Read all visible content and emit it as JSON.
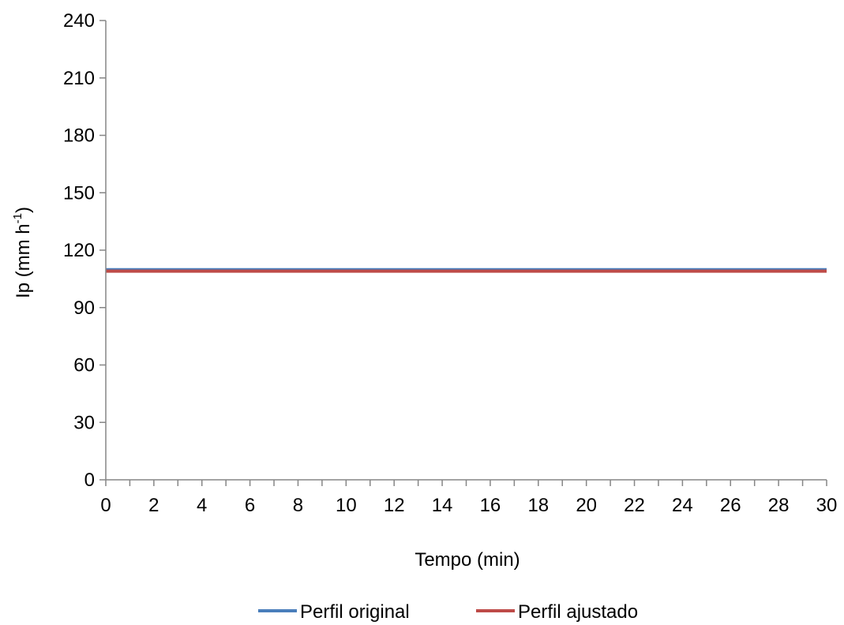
{
  "chart_data": {
    "type": "line",
    "title": "",
    "xlabel": "Tempo (min)",
    "ylabel_main": "Ip (mm h",
    "ylabel_sup": "-1",
    "ylabel_close": ")",
    "xlim": [
      0,
      30
    ],
    "ylim": [
      0,
      240
    ],
    "x_ticks": [
      0,
      2,
      4,
      6,
      8,
      10,
      12,
      14,
      16,
      18,
      20,
      22,
      24,
      26,
      28,
      30
    ],
    "y_ticks": [
      0,
      30,
      60,
      90,
      120,
      150,
      180,
      210,
      240
    ],
    "grid": false,
    "legend_position": "bottom",
    "series": [
      {
        "name": "Perfil original",
        "color": "#4a7ebb",
        "x": [
          0,
          30
        ],
        "y": [
          109.8,
          109.8
        ]
      },
      {
        "name": "Perfil ajustado",
        "color": "#be4b48",
        "x": [
          0,
          30
        ],
        "y": [
          109.0,
          109.0
        ]
      }
    ]
  }
}
